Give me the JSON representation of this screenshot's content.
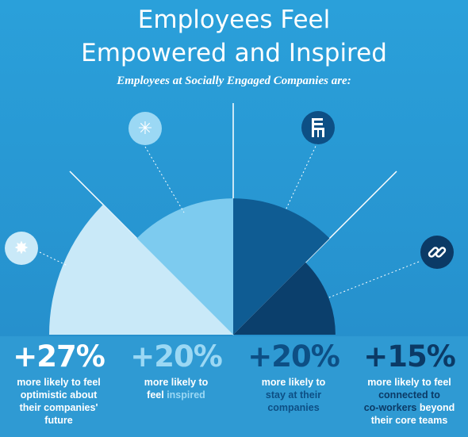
{
  "title_line1": "Employees Feel",
  "title_line2": "Empowered and Inspired",
  "subtitle": "Employees at Socially Engaged Companies are:",
  "colors": {
    "background": "#2aa0da",
    "slice_optimistic": "#c9e9f8",
    "slice_inspired": "#7dcbef",
    "slice_stay": "#0f5c93",
    "slice_connected": "#0b3f6c"
  },
  "chart_data": {
    "type": "pie",
    "title": "Employees Feel Empowered and Inspired",
    "subtitle": "Employees at Socially Engaged Companies are:",
    "series": [
      {
        "name": "optimistic",
        "value": 27,
        "label": "+27%",
        "color": "#c9e9f8",
        "icon": "sparkle-icon"
      },
      {
        "name": "inspired",
        "value": 20,
        "label": "+20%",
        "color": "#7dcbef",
        "icon": "star-icon"
      },
      {
        "name": "stay",
        "value": 20,
        "label": "+20%",
        "color": "#0f5c93",
        "icon": "chair-icon"
      },
      {
        "name": "connected",
        "value": 15,
        "label": "+15%",
        "color": "#0b3f6c",
        "icon": "link-icon"
      }
    ]
  },
  "stats": [
    {
      "pct": "+27%",
      "l1": "more likely to feel",
      "l2a": "optimistic",
      "l2b": " about",
      "l3": "their companies'",
      "l4": "future",
      "pct_color": "#ffffff",
      "hl_color": "#ffffff"
    },
    {
      "pct": "+20%",
      "l1": "more likely to",
      "l2a": "feel ",
      "l2b": "inspired",
      "pct_color": "#9bd8f4",
      "hl_color": "#9bd8f4"
    },
    {
      "pct": "+20%",
      "l1": "more likely to",
      "l2a": "stay at their",
      "l3": "companies",
      "pct_color": "#0d4f85",
      "hl_color": "#0d4f85"
    },
    {
      "pct": "+15%",
      "l1": "more likely to feel",
      "l2a": "connected to",
      "l3a": "co-workers",
      "l3b": " beyond",
      "l4": "their core teams",
      "pct_color": "#0b3a66",
      "hl_color": "#0b3a66"
    }
  ]
}
